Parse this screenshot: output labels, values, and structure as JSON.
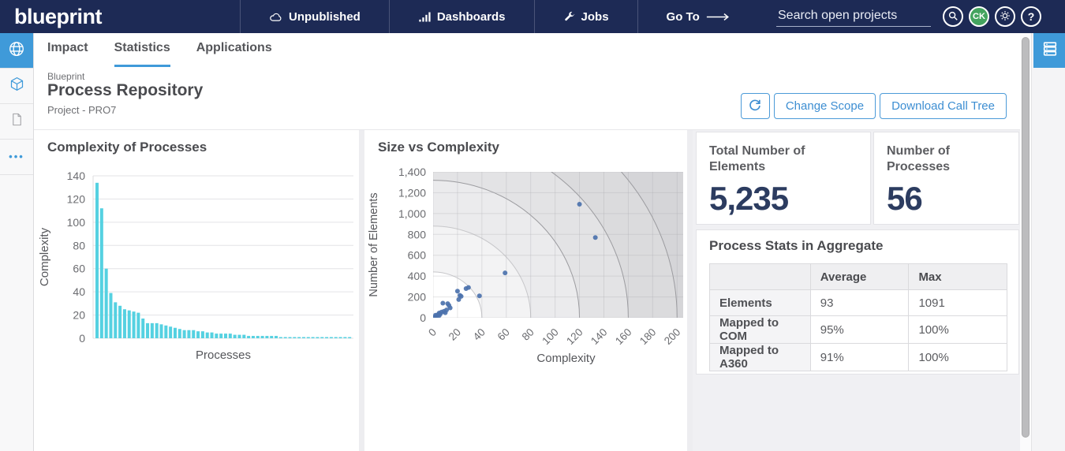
{
  "colors": {
    "accent": "#3f9ad9",
    "topbar": "#1d2a55",
    "bar": "#55d1e1",
    "point": "#4c72ad",
    "kpi_number": "#2c3c60"
  },
  "topbar": {
    "logo": "blueprint",
    "items": [
      {
        "icon": "cloud-icon",
        "label": "Unpublished"
      },
      {
        "icon": "chart-bars-icon",
        "label": "Dashboards"
      },
      {
        "icon": "wrench-icon",
        "label": "Jobs"
      },
      {
        "icon": "arrow-right-icon",
        "label": "Go To"
      }
    ],
    "search_placeholder": "Search open projects",
    "avatar_initials": "CK"
  },
  "sidebar": {
    "items": [
      {
        "icon": "globe-icon",
        "active": true
      },
      {
        "icon": "cube-icon",
        "active": false
      },
      {
        "icon": "document-icon",
        "active": false
      },
      {
        "icon": "ellipsis-icon",
        "active": false
      }
    ]
  },
  "tabs": [
    {
      "label": "Impact",
      "active": false
    },
    {
      "label": "Statistics",
      "active": true
    },
    {
      "label": "Applications",
      "active": false
    }
  ],
  "header": {
    "breadcrumb": "Blueprint",
    "title": "Process Repository",
    "subtitle": "Project - PRO7",
    "actions": [
      {
        "label": "Change Scope"
      },
      {
        "label": "Download Call Tree"
      }
    ]
  },
  "chart_data": [
    {
      "type": "bar",
      "title": "Complexity of Processes",
      "xlabel": "Processes",
      "ylabel": "Complexity",
      "ylim": [
        0,
        140
      ],
      "ytick_step": 20,
      "grid": true,
      "values": [
        134,
        112,
        60,
        39,
        31,
        28,
        25,
        24,
        23,
        22,
        17,
        13,
        13,
        13,
        12,
        11,
        10,
        9,
        8,
        7,
        7,
        7,
        6,
        6,
        5,
        5,
        4,
        4,
        4,
        4,
        3,
        3,
        3,
        2,
        2,
        2,
        2,
        2,
        2,
        2,
        1,
        1,
        1,
        1,
        1,
        1,
        1,
        1,
        1,
        1,
        1,
        1,
        1,
        1,
        1,
        1
      ]
    },
    {
      "type": "scatter",
      "title": "Size vs Complexity",
      "xlabel": "Complexity",
      "ylabel": "Number of Elements",
      "xlim": [
        0,
        205
      ],
      "ylim": [
        0,
        1400
      ],
      "xtick_step": 20,
      "xtick_max": 200,
      "ytick_step": 200,
      "grid": true,
      "contour_bands": {
        "rx": [
          40,
          80,
          120,
          160,
          200
        ],
        "ry": [
          440,
          880,
          1320,
          1760,
          2200
        ]
      },
      "points": [
        [
          1,
          5
        ],
        [
          2,
          12
        ],
        [
          2,
          25
        ],
        [
          3,
          18
        ],
        [
          4,
          30
        ],
        [
          5,
          22
        ],
        [
          5,
          45
        ],
        [
          6,
          38
        ],
        [
          7,
          55
        ],
        [
          8,
          140
        ],
        [
          9,
          62
        ],
        [
          10,
          48
        ],
        [
          11,
          75
        ],
        [
          12,
          135
        ],
        [
          13,
          118
        ],
        [
          14,
          95
        ],
        [
          20,
          255
        ],
        [
          21,
          175
        ],
        [
          22,
          215
        ],
        [
          23,
          205
        ],
        [
          27,
          280
        ],
        [
          29,
          290
        ],
        [
          38,
          210
        ],
        [
          59,
          430
        ],
        [
          120,
          1090
        ],
        [
          133,
          770
        ]
      ]
    }
  ],
  "kpis": [
    {
      "label": "Total Number of Elements",
      "value": "5,235"
    },
    {
      "label": "Number of Processes",
      "value": "56"
    }
  ],
  "stats": {
    "title": "Process Stats in Aggregate",
    "columns": [
      "",
      "Average",
      "Max"
    ],
    "rows": [
      {
        "label": "Elements",
        "average": "93",
        "max": "1091"
      },
      {
        "label": "Mapped to COM",
        "average": "95%",
        "max": "100%"
      },
      {
        "label": "Mapped to A360",
        "average": "91%",
        "max": "100%"
      }
    ]
  }
}
